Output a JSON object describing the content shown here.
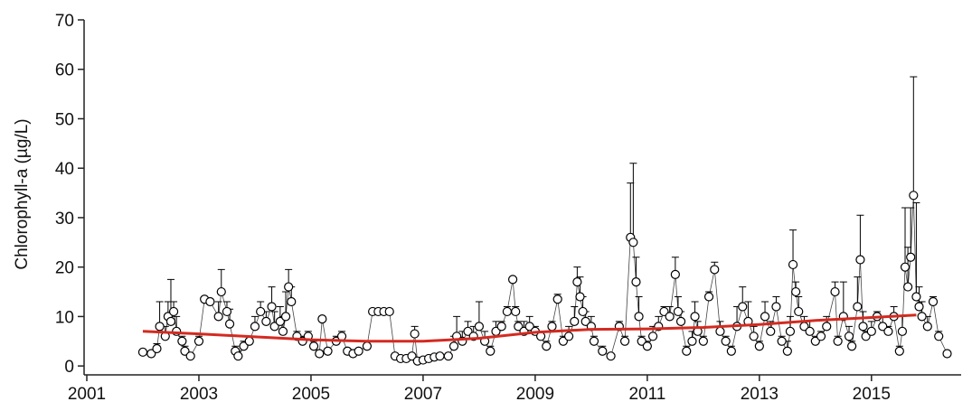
{
  "chart_data": {
    "type": "scatter",
    "ylabel": "Chlorophyll-a (µg/L)",
    "xlim": [
      2001,
      2016.6
    ],
    "ylim": [
      -1.8,
      70
    ],
    "xticks": [
      2001,
      2003,
      2005,
      2007,
      2009,
      2011,
      2013,
      2015
    ],
    "yticks": [
      0,
      10,
      20,
      30,
      40,
      50,
      60,
      70
    ],
    "series": [
      {
        "mark": "points",
        "color": "#000000",
        "x": [
          2002.0,
          2002.15,
          2002.25,
          2002.3,
          2002.4,
          2002.45,
          2002.5,
          2002.55,
          2002.6,
          2002.7,
          2002.75,
          2002.85,
          2003.0,
          2003.1,
          2003.2,
          2003.35,
          2003.4,
          2003.5,
          2003.55,
          2003.65,
          2003.7,
          2003.8,
          2003.9,
          2004.0,
          2004.1,
          2004.2,
          2004.3,
          2004.35,
          2004.45,
          2004.5,
          2004.55,
          2004.6,
          2004.65,
          2004.75,
          2004.85,
          2004.95,
          2005.05,
          2005.15,
          2005.2,
          2005.3,
          2005.45,
          2005.55,
          2005.65,
          2005.75,
          2005.85,
          2006.0,
          2006.1,
          2006.2,
          2006.3,
          2006.4,
          2006.5,
          2006.6,
          2006.7,
          2006.8,
          2006.85,
          2006.9,
          2007.0,
          2007.1,
          2007.2,
          2007.3,
          2007.45,
          2007.55,
          2007.6,
          2007.7,
          2007.8,
          2007.9,
          2008.0,
          2008.1,
          2008.2,
          2008.3,
          2008.4,
          2008.5,
          2008.6,
          2008.65,
          2008.7,
          2008.8,
          2008.9,
          2009.0,
          2009.1,
          2009.2,
          2009.3,
          2009.4,
          2009.5,
          2009.6,
          2009.7,
          2009.75,
          2009.8,
          2009.85,
          2009.9,
          2010.0,
          2010.05,
          2010.2,
          2010.35,
          2010.5,
          2010.6,
          2010.7,
          2010.75,
          2010.8,
          2010.85,
          2010.9,
          2011.0,
          2011.1,
          2011.2,
          2011.3,
          2011.4,
          2011.5,
          2011.55,
          2011.6,
          2011.7,
          2011.8,
          2011.85,
          2011.9,
          2012.0,
          2012.1,
          2012.2,
          2012.3,
          2012.4,
          2012.5,
          2012.6,
          2012.7,
          2012.8,
          2012.9,
          2013.0,
          2013.1,
          2013.2,
          2013.3,
          2013.4,
          2013.5,
          2013.55,
          2013.6,
          2013.65,
          2013.7,
          2013.8,
          2013.9,
          2014.0,
          2014.1,
          2014.2,
          2014.35,
          2014.4,
          2014.5,
          2014.6,
          2014.65,
          2014.75,
          2014.8,
          2014.85,
          2014.9,
          2015.0,
          2015.1,
          2015.2,
          2015.3,
          2015.4,
          2015.5,
          2015.55,
          2015.6,
          2015.65,
          2015.7,
          2015.75,
          2015.8,
          2015.85,
          2015.9,
          2016.0,
          2016.1,
          2016.2,
          2016.35
        ],
        "values": [
          2.8,
          2.5,
          3.5,
          8,
          6,
          10,
          9,
          11,
          7,
          5,
          3,
          2,
          5,
          13.5,
          13,
          10,
          15,
          11,
          8.5,
          3,
          2,
          4,
          5,
          8,
          11,
          9,
          12,
          8,
          9,
          7,
          10,
          16,
          13,
          6,
          5,
          6,
          4,
          2.5,
          9.5,
          3,
          5,
          6,
          3,
          2.5,
          3,
          4,
          11,
          11,
          11,
          11,
          2,
          1.5,
          1.5,
          2,
          6.5,
          1,
          1.2,
          1.5,
          1.8,
          2,
          2,
          4,
          6,
          5,
          7,
          6,
          8,
          5,
          3,
          7,
          8,
          11,
          17.5,
          11,
          8,
          7,
          8,
          7,
          6,
          4,
          8,
          13.5,
          5,
          6,
          9,
          17,
          14,
          11,
          9,
          8,
          5,
          3,
          2,
          8,
          5,
          26,
          25,
          17,
          10,
          5,
          4,
          6,
          8,
          11,
          10,
          18.5,
          11,
          9,
          3,
          5,
          10,
          7,
          5,
          14,
          19.5,
          7,
          5,
          3,
          8,
          12,
          9,
          6,
          4,
          10,
          7,
          12,
          5,
          3,
          7,
          20.5,
          15,
          11,
          8,
          7,
          5,
          6,
          8,
          15,
          5,
          10,
          6,
          4,
          12,
          21.5,
          8,
          6,
          7,
          10,
          8,
          7,
          10,
          3,
          7,
          20,
          16,
          22,
          34.5,
          14,
          12,
          10,
          8,
          13,
          6,
          2.5
        ],
        "errors": [
          0.3,
          0.3,
          1,
          5,
          2,
          3,
          8.5,
          2,
          3,
          1,
          1,
          0.5,
          1,
          0.5,
          0.5,
          3,
          4.5,
          2,
          3,
          1,
          1,
          1,
          1,
          2,
          2,
          2,
          4,
          3,
          3,
          3,
          5,
          3.5,
          3,
          1,
          1,
          1,
          1,
          0.5,
          0.5,
          0.5,
          1,
          1,
          0.5,
          0.5,
          0.5,
          0.5,
          0.5,
          0.5,
          0.5,
          0.5,
          0.3,
          0.3,
          0.3,
          0.3,
          1.5,
          0.3,
          0.3,
          0.3,
          0.3,
          0.3,
          0.3,
          2,
          4,
          2,
          2,
          2,
          5,
          2,
          1,
          2,
          1,
          1,
          0.3,
          1,
          1,
          2,
          2,
          1,
          1,
          1,
          1,
          1,
          1,
          2,
          3,
          3,
          4,
          3,
          2,
          2,
          1,
          1,
          0.5,
          1,
          1,
          11,
          16,
          5,
          4,
          1,
          1,
          2,
          2,
          1,
          2,
          3.5,
          3,
          2,
          1,
          2,
          3,
          2,
          1,
          1,
          1.5,
          2,
          1,
          1,
          4,
          4,
          4,
          2,
          1,
          3,
          2,
          2,
          1,
          2,
          3,
          7,
          2,
          3,
          2,
          2,
          1,
          1,
          2,
          2,
          1,
          7,
          2,
          1,
          6,
          9,
          3,
          1,
          2,
          1,
          2,
          1,
          2,
          1,
          3,
          12,
          8,
          10,
          24,
          19,
          4,
          3,
          2,
          1,
          1,
          0.5
        ]
      },
      {
        "mark": "line",
        "color": "#d42a20",
        "x": [
          2002,
          2003,
          2004,
          2005,
          2006,
          2007,
          2008,
          2009,
          2010,
          2011,
          2012,
          2013,
          2014,
          2015,
          2015.8
        ],
        "values": [
          7,
          6.5,
          5.9,
          5.3,
          5,
          5,
          5.6,
          6.8,
          7.4,
          7.5,
          7.8,
          8.4,
          9.2,
          9.8,
          10.3
        ]
      }
    ]
  }
}
